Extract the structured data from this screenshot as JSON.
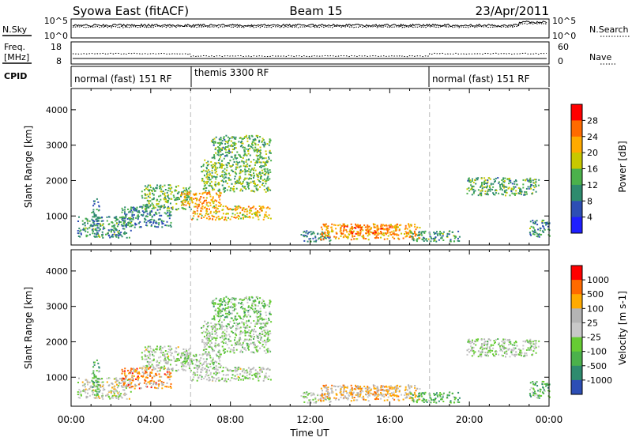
{
  "header": {
    "station": "Syowa East (fitACF)",
    "beam": "Beam 15",
    "date": "23/Apr/2011"
  },
  "noise_panel": {
    "left_label": "N.Sky",
    "right_label": "N.Search",
    "left_ticks": [
      "10^5",
      "10^0"
    ],
    "right_ticks": [
      "10^5",
      "10^0"
    ]
  },
  "freq_panel": {
    "left_label_line1": "Freq.",
    "left_label_line2": "[MHz]",
    "left_ticks": [
      "18",
      "8"
    ],
    "right_ticks": [
      "60",
      "0"
    ],
    "right_label": "Nave"
  },
  "cpid": {
    "label": "CPID",
    "segments": [
      {
        "name": "normal (fast) 151 RF",
        "start_hour": 0,
        "end_hour": 6
      },
      {
        "name": "themis 3300 RF",
        "start_hour": 6,
        "end_hour": 18
      },
      {
        "name": "normal (fast) 151 RF",
        "start_hour": 18,
        "end_hour": 24
      }
    ]
  },
  "chart_data": [
    {
      "type": "heatmap",
      "parameter": "power",
      "ylabel": "Slant Range [km]",
      "ylim": [
        180,
        4600
      ],
      "yticks": [
        "1000",
        "2000",
        "3000",
        "4000"
      ],
      "xlim_hours": [
        0,
        24
      ],
      "colorbar": {
        "label": "Power [dB]",
        "ticks": [
          "4",
          "8",
          "12",
          "16",
          "20",
          "24",
          "28"
        ],
        "colors": [
          "#1e1eff",
          "#2d4eb5",
          "#2e8b6e",
          "#4bb14b",
          "#c8c800",
          "#ffaa00",
          "#ff6a00",
          "#ff0000"
        ]
      },
      "regions": [
        {
          "t0": 0.3,
          "t1": 3.0,
          "r0": 400,
          "r1": 1000,
          "level": 0.35
        },
        {
          "t0": 1.0,
          "t1": 1.4,
          "r0": 500,
          "r1": 1500,
          "level": 0.3
        },
        {
          "t0": 2.5,
          "t1": 5.0,
          "r0": 700,
          "r1": 1300,
          "level": 0.3
        },
        {
          "t0": 3.5,
          "t1": 6.0,
          "r0": 1200,
          "r1": 1900,
          "level": 0.45
        },
        {
          "t0": 5.5,
          "t1": 7.5,
          "r0": 1300,
          "r1": 1700,
          "level": 0.7
        },
        {
          "t0": 6.0,
          "t1": 10.0,
          "r0": 900,
          "r1": 1300,
          "level": 0.65
        },
        {
          "t0": 6.5,
          "t1": 10.0,
          "r0": 1700,
          "r1": 2600,
          "level": 0.45
        },
        {
          "t0": 7.0,
          "t1": 10.0,
          "r0": 2600,
          "r1": 3300,
          "level": 0.4
        },
        {
          "t0": 11.5,
          "t1": 13.0,
          "r0": 300,
          "r1": 600,
          "level": 0.3
        },
        {
          "t0": 12.5,
          "t1": 17.5,
          "r0": 350,
          "r1": 800,
          "level": 0.7
        },
        {
          "t0": 13.5,
          "t1": 16.0,
          "r0": 500,
          "r1": 750,
          "level": 0.85
        },
        {
          "t0": 17.0,
          "t1": 19.5,
          "r0": 300,
          "r1": 600,
          "level": 0.35
        },
        {
          "t0": 19.8,
          "t1": 23.5,
          "r0": 1600,
          "r1": 2100,
          "level": 0.4
        },
        {
          "t0": 23.0,
          "t1": 24.0,
          "r0": 400,
          "r1": 900,
          "level": 0.35
        }
      ]
    },
    {
      "type": "heatmap",
      "parameter": "velocity",
      "ylabel": "Slant Range [km]",
      "ylim": [
        180,
        4600
      ],
      "yticks": [
        "1000",
        "2000",
        "3000",
        "4000"
      ],
      "xlim_hours": [
        0,
        24
      ],
      "xticks": [
        "00:00",
        "04:00",
        "08:00",
        "12:00",
        "16:00",
        "20:00",
        "00:00"
      ],
      "xlabel": "Time UT",
      "colorbar": {
        "label": "Velocity [m s-1]",
        "ticks": [
          "1000",
          "500",
          "100",
          "25",
          "-25",
          "-100",
          "-500",
          "-1000"
        ],
        "colors": [
          "#2d4eb5",
          "#2e8b6e",
          "#4bb14b",
          "#66cc33",
          "#c8c8c8",
          "#b4b4b4",
          "#ffaa00",
          "#ff6a00",
          "#ff0000"
        ]
      },
      "regions": [
        {
          "t0": 0.3,
          "t1": 3.0,
          "r0": 400,
          "r1": 1000,
          "level": 0.55
        },
        {
          "t0": 1.0,
          "t1": 1.4,
          "r0": 500,
          "r1": 1500,
          "level": 0.3
        },
        {
          "t0": 2.5,
          "t1": 5.0,
          "r0": 700,
          "r1": 1300,
          "level": 0.75
        },
        {
          "t0": 3.5,
          "t1": 6.0,
          "r0": 1200,
          "r1": 1900,
          "level": 0.5
        },
        {
          "t0": 5.5,
          "t1": 7.5,
          "r0": 1300,
          "r1": 1700,
          "level": 0.45
        },
        {
          "t0": 6.0,
          "t1": 10.0,
          "r0": 900,
          "r1": 1300,
          "level": 0.5
        },
        {
          "t0": 6.5,
          "t1": 10.0,
          "r0": 1700,
          "r1": 2600,
          "level": 0.45
        },
        {
          "t0": 7.0,
          "t1": 10.0,
          "r0": 2600,
          "r1": 3300,
          "level": 0.35
        },
        {
          "t0": 11.5,
          "t1": 13.0,
          "r0": 300,
          "r1": 600,
          "level": 0.5
        },
        {
          "t0": 12.5,
          "t1": 17.5,
          "r0": 350,
          "r1": 800,
          "level": 0.65
        },
        {
          "t0": 13.5,
          "t1": 16.0,
          "r0": 500,
          "r1": 750,
          "level": 0.7
        },
        {
          "t0": 17.0,
          "t1": 19.5,
          "r0": 300,
          "r1": 600,
          "level": 0.3
        },
        {
          "t0": 19.8,
          "t1": 23.5,
          "r0": 1600,
          "r1": 2100,
          "level": 0.48
        },
        {
          "t0": 23.0,
          "t1": 24.0,
          "r0": 400,
          "r1": 900,
          "level": 0.35
        }
      ]
    }
  ]
}
